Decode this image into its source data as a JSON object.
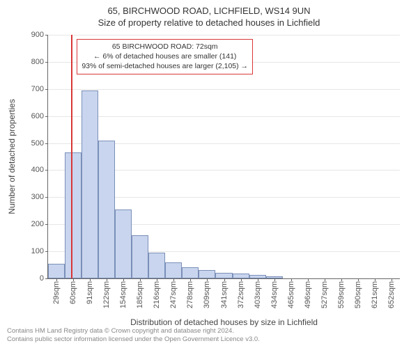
{
  "title_main": "65, BIRCHWOOD ROAD, LICHFIELD, WS14 9UN",
  "title_sub": "Size of property relative to detached houses in Lichfield",
  "chart": {
    "type": "histogram",
    "ylabel": "Number of detached properties",
    "xlabel": "Distribution of detached houses by size in Lichfield",
    "ylim": [
      0,
      900
    ],
    "ytick_step": 100,
    "xticks": [
      "29sqm",
      "60sqm",
      "91sqm",
      "122sqm",
      "154sqm",
      "185sqm",
      "216sqm",
      "247sqm",
      "278sqm",
      "309sqm",
      "341sqm",
      "372sqm",
      "403sqm",
      "434sqm",
      "465sqm",
      "496sqm",
      "527sqm",
      "559sqm",
      "590sqm",
      "621sqm",
      "652sqm"
    ],
    "values": [
      55,
      465,
      695,
      510,
      255,
      160,
      95,
      60,
      40,
      30,
      20,
      18,
      12,
      8,
      0,
      0,
      0,
      0,
      0,
      0,
      0
    ],
    "bar_fill": "#c9d5ee",
    "bar_stroke": "#7a8fb8",
    "grid_color": "#e6e6e6",
    "axis_color": "#666666",
    "background": "#ffffff",
    "refline_color": "#d93636",
    "refline_value": 72,
    "xmin": 29,
    "xstep": 31
  },
  "annotation": {
    "line1": "65 BIRCHWOOD ROAD: 72sqm",
    "line2": "← 6% of detached houses are smaller (141)",
    "line3": "93% of semi-detached houses are larger (2,105) →"
  },
  "footer": {
    "line1": "Contains HM Land Registry data © Crown copyright and database right 2024.",
    "line2": "Contains public sector information licensed under the Open Government Licence v3.0."
  }
}
